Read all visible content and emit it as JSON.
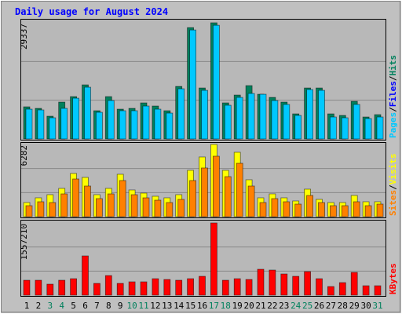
{
  "legend_separator": "/",
  "weekend_color": "#00805c",
  "weekend_indices": [
    2,
    3,
    9,
    10,
    16,
    17,
    23,
    24,
    30
  ],
  "chart_data": [
    {
      "type": "bar",
      "title": "Daily usage for August 2024",
      "ylim": [
        0,
        29337
      ],
      "yticks": [
        29337
      ],
      "series": [
        {
          "name": "Hits",
          "color": "#00805c",
          "values": [
            8118,
            7722,
            5742,
            9306,
            10692,
            13662,
            7128,
            10692,
            7524,
            7722,
            9108,
            8316,
            7128,
            13266,
            28116,
            12870,
            29337,
            9108,
            11088,
            13464,
            11286,
            10494,
            9306,
            6336,
            12870,
            12870,
            6336,
            5940,
            9504,
            5544,
            6138
          ]
        },
        {
          "name": "Files",
          "color": "#0000ff",
          "values": [
            null,
            null,
            null,
            null,
            null,
            null,
            null,
            null,
            null,
            null,
            null,
            null,
            null,
            null,
            null,
            null,
            null,
            null,
            null,
            null,
            null,
            null,
            null,
            null,
            null,
            null,
            null,
            null,
            null,
            null,
            null
          ]
        },
        {
          "name": "Pages",
          "color": "#00c8ff",
          "values": [
            7524,
            7326,
            5346,
            7722,
            10296,
            13068,
            6732,
            9702,
            7128,
            7128,
            8316,
            7524,
            6534,
            12672,
            27522,
            12276,
            28710,
            8514,
            10494,
            11484,
            11286,
            9702,
            8712,
            5940,
            12474,
            12276,
            5544,
            5346,
            8712,
            5148,
            5544
          ]
        }
      ]
    },
    {
      "type": "bar",
      "ylim": [
        0,
        6282
      ],
      "yticks": [
        6282
      ],
      "series": [
        {
          "name": "Visits",
          "color": "#ffff00",
          "values": [
            1229,
            1639,
            1912,
            2459,
            3757,
            3415,
            1912,
            2459,
            3688,
            2322,
            2049,
            1776,
            1639,
            1912,
            4030,
            5191,
            6282,
            4030,
            5601,
            3210,
            1639,
            1981,
            1639,
            1366,
            2391,
            1503,
            1229,
            1229,
            1844,
            1298,
            1298
          ]
        },
        {
          "name": "Sites",
          "color": "#ff8000",
          "values": [
            956,
            1298,
            1229,
            1981,
            3278,
            2664,
            1571,
            1981,
            3142,
            1912,
            1639,
            1434,
            1229,
            1503,
            3142,
            4235,
            5259,
            3483,
            4644,
            2664,
            1229,
            1571,
            1298,
            1093,
            1844,
            1229,
            956,
            956,
            1298,
            956,
            1093
          ]
        }
      ]
    },
    {
      "type": "bar",
      "ylim": [
        0,
        1557210
      ],
      "yticks": [
        1557210
      ],
      "categories": [
        "1",
        "2",
        "3",
        "4",
        "5",
        "6",
        "7",
        "8",
        "9",
        "10",
        "11",
        "12",
        "13",
        "14",
        "15",
        "16",
        "17",
        "18",
        "19",
        "20",
        "21",
        "22",
        "23",
        "24",
        "25",
        "26",
        "27",
        "28",
        "29",
        "30",
        "31"
      ],
      "series": [
        {
          "name": "KBytes",
          "color": "#ff0000",
          "values": [
            321594,
            321594,
            236964,
            321594,
            355446,
            846300,
            253890,
            423150,
            253890,
            287742,
            287742,
            355446,
            338520,
            321594,
            355446,
            406224,
            1557210,
            321594,
            355446,
            338520,
            558558,
            541632,
            457002,
            406224,
            507780,
            355446,
            186186,
            270816,
            490854,
            203112,
            203112
          ]
        }
      ]
    }
  ]
}
